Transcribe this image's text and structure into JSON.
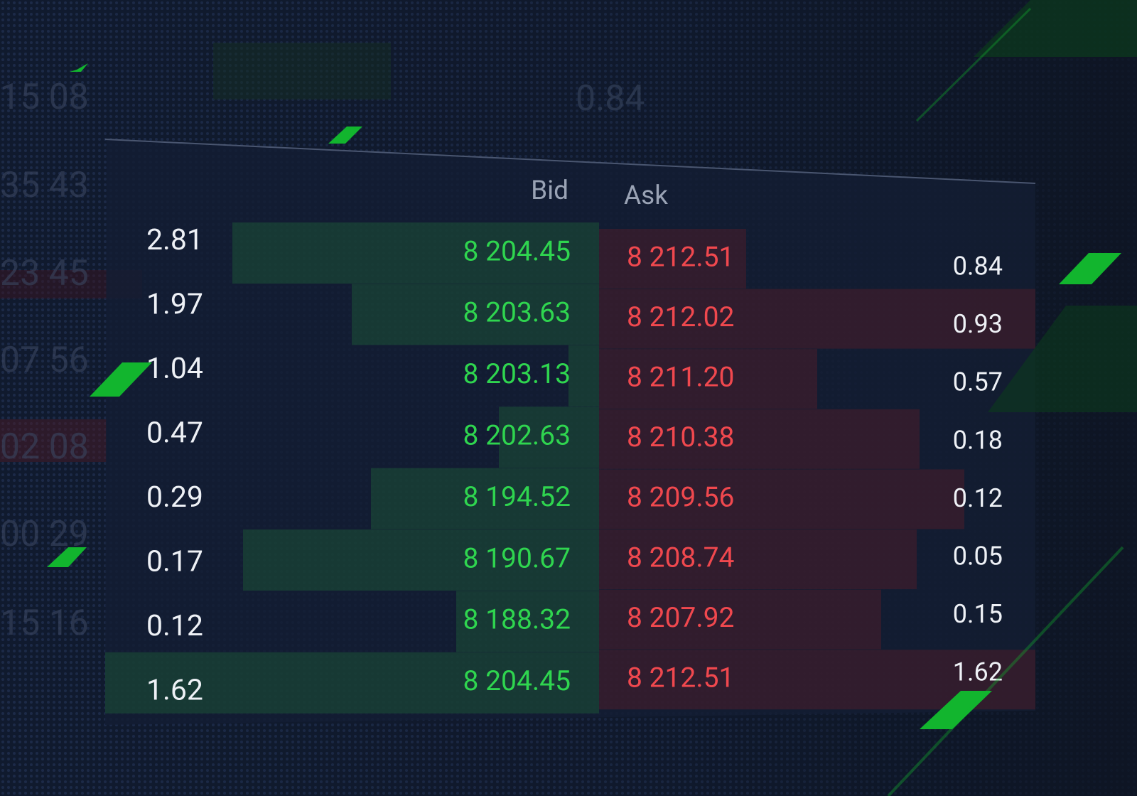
{
  "order_book": {
    "headers": {
      "bid": "Bid",
      "ask": "Ask"
    },
    "rows": [
      {
        "bid_size": 2.81,
        "bid": "8 204.45",
        "ask": "8 212.51",
        "ask_size": 0.84
      },
      {
        "bid_size": 1.97,
        "bid": "8 203.63",
        "ask": "8 212.02",
        "ask_size": 0.93
      },
      {
        "bid_size": 1.04,
        "bid": "8 203.13",
        "ask": "8 211.20",
        "ask_size": 0.57
      },
      {
        "bid_size": 0.47,
        "bid": "8 202.63",
        "ask": "8 210.38",
        "ask_size": 0.18
      },
      {
        "bid_size": 0.29,
        "bid": "8 194.52",
        "ask": "8 209.56",
        "ask_size": 0.12
      },
      {
        "bid_size": 0.17,
        "bid": "8 190.67",
        "ask": "8 208.74",
        "ask_size": 0.05
      },
      {
        "bid_size": 0.12,
        "bid": "8 188.32",
        "ask": "8 207.92",
        "ask_size": 0.15
      },
      {
        "bid_size": 1.62,
        "bid": "8 204.45",
        "ask": "8 212.51",
        "ask_size": 1.62
      }
    ],
    "background_labels": [
      "15 08",
      "35 43",
      "23 45",
      "07 56",
      "02 08",
      "00 29",
      "15 16",
      "0.84"
    ]
  }
}
